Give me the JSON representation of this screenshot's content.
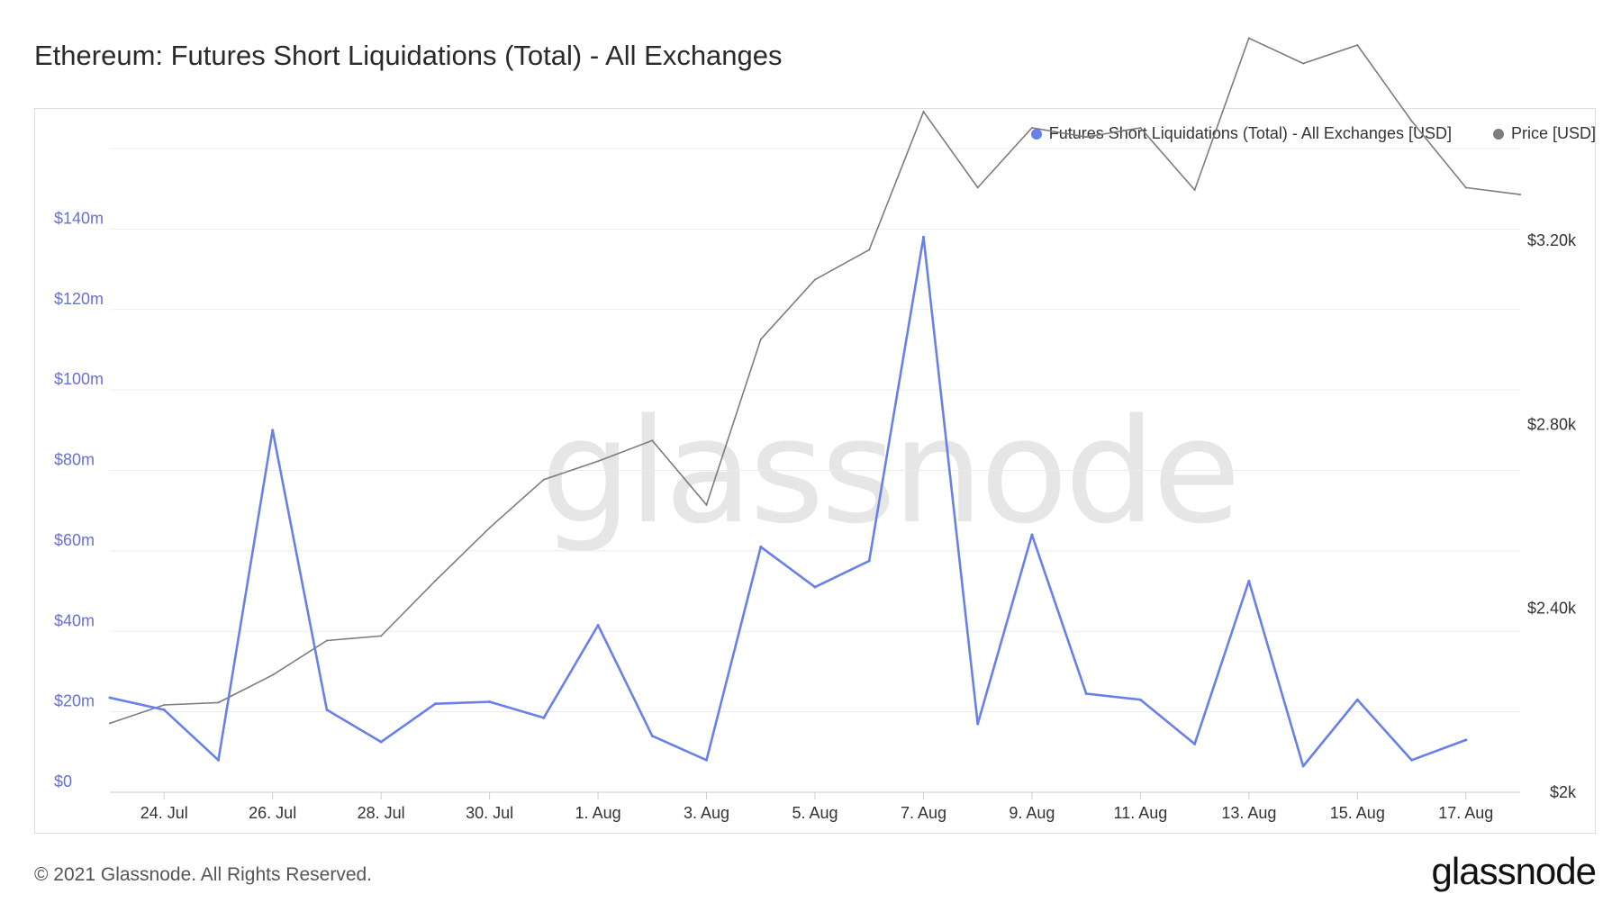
{
  "title": "Ethereum: Futures Short Liquidations (Total) - All Exchanges",
  "footer": {
    "copyright": "© 2021 Glassnode. All Rights Reserved.",
    "logo": "glassnode"
  },
  "watermark": "glassnode",
  "colors": {
    "liquidations": "#6880e8",
    "price": "#7c7c7c",
    "grid": "#ececec",
    "left_axis_text": "#6670d6",
    "right_axis_text": "#333333"
  },
  "legend": [
    {
      "label": "Futures Short Liquidations (Total) - All Exchanges [USD]",
      "color": "#6880e8"
    },
    {
      "label": "Price [USD]",
      "color": "#7c7c7c"
    }
  ],
  "chart_data": {
    "type": "line",
    "x": [
      "23. Jul",
      "24. Jul",
      "25. Jul",
      "26. Jul",
      "27. Jul",
      "28. Jul",
      "29. Jul",
      "30. Jul",
      "31. Jul",
      "1. Aug",
      "2. Aug",
      "3. Aug",
      "4. Aug",
      "5. Aug",
      "6. Aug",
      "7. Aug",
      "8. Aug",
      "9. Aug",
      "10. Aug",
      "11. Aug",
      "12. Aug",
      "13. Aug",
      "14. Aug",
      "15. Aug",
      "16. Aug",
      "17. Aug",
      "18. Aug"
    ],
    "x_tick_labels": [
      "24. Jul",
      "26. Jul",
      "28. Jul",
      "30. Jul",
      "1. Aug",
      "3. Aug",
      "5. Aug",
      "7. Aug",
      "9. Aug",
      "11. Aug",
      "13. Aug",
      "15. Aug",
      "17. Aug"
    ],
    "left_axis": {
      "ticks": [
        "$0",
        "$20m",
        "$40m",
        "$60m",
        "$80m",
        "$100m",
        "$120m",
        "$140m"
      ],
      "tick_values": [
        0,
        20,
        40,
        60,
        80,
        100,
        120,
        140
      ],
      "ylim": [
        0,
        160
      ]
    },
    "right_axis": {
      "ticks": [
        "$2k",
        "$2.40k",
        "$2.80k",
        "$3.20k"
      ],
      "tick_values": [
        2000,
        2400,
        2800,
        3200
      ],
      "ylim": [
        2000,
        3400
      ]
    },
    "series": [
      {
        "name": "Futures Short Liquidations (Total) - All Exchanges [USD]",
        "axis": "left",
        "unit": "USD millions",
        "values": [
          23.5,
          20.5,
          8,
          90,
          20.5,
          12.5,
          22,
          22.5,
          18.5,
          41.5,
          14,
          8,
          61,
          51,
          57.5,
          138,
          17,
          64,
          24.5,
          23,
          12,
          52.5,
          6.5,
          23,
          8,
          13,
          null
        ]
      },
      {
        "name": "Price [USD]",
        "axis": "right",
        "unit": "USD",
        "values": [
          2150,
          2190,
          2195,
          2255,
          2330,
          2340,
          2460,
          2575,
          2680,
          2720,
          2765,
          2625,
          2985,
          3115,
          3180,
          3480,
          3315,
          3445,
          3425,
          3445,
          3310,
          3640,
          3585,
          3625,
          3460,
          3315,
          3300
        ]
      }
    ]
  }
}
